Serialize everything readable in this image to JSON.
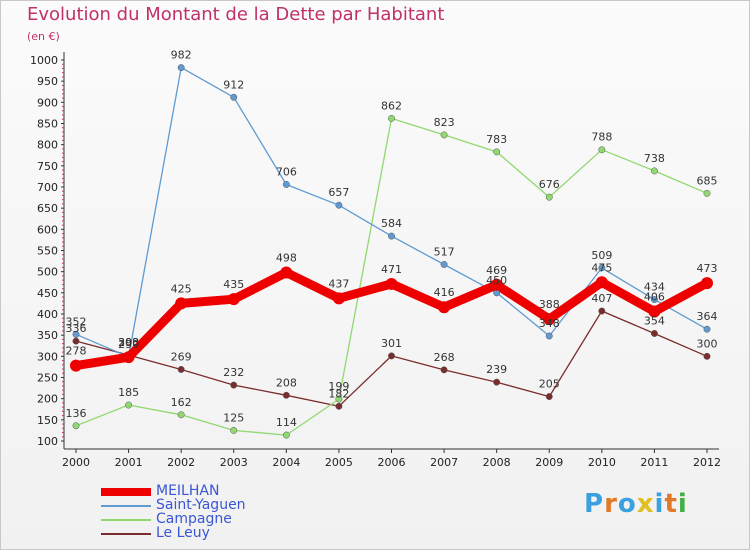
{
  "header": {
    "title": "Evolution du Montant de la Dette par Habitant",
    "unit": "(en €)"
  },
  "logo": {
    "text": "Proxiti",
    "letter_colors": [
      "#3aa0e0",
      "#e07a28",
      "#3aa0e0",
      "#e0c020",
      "#3aa0e0",
      "#e07a28",
      "#40b040"
    ]
  },
  "chart_data": {
    "type": "line",
    "title": "Evolution du Montant de la Dette par Habitant",
    "ylabel": "(en €)",
    "xlabel": "",
    "x": [
      "2000",
      "2001",
      "2002",
      "2003",
      "2004",
      "2005",
      "2006",
      "2007",
      "2008",
      "2009",
      "2010",
      "2011",
      "2012"
    ],
    "ylim": [
      100,
      1000
    ],
    "yticks": [
      100,
      150,
      200,
      250,
      300,
      350,
      400,
      450,
      500,
      550,
      600,
      650,
      700,
      750,
      800,
      850,
      900,
      950,
      1000
    ],
    "grid": false,
    "legend_position": "bottom-left",
    "series": [
      {
        "name": "MEILHAN",
        "color": "#ee0000",
        "values": [
          278,
          298,
          425,
          435,
          498,
          437,
          471,
          416,
          469,
          388,
          475,
          406,
          473
        ]
      },
      {
        "name": "Saint-Yaguen",
        "color": "#5f9bd0",
        "values": [
          352,
          299,
          982,
          912,
          706,
          657,
          584,
          517,
          450,
          348,
          509,
          434,
          364
        ]
      },
      {
        "name": "Campagne",
        "color": "#90d870",
        "values": [
          136,
          185,
          162,
          125,
          114,
          199,
          862,
          823,
          783,
          676,
          788,
          738,
          685
        ]
      },
      {
        "name": "Le Leuy",
        "color": "#7a2d2d",
        "values": [
          336,
          303,
          269,
          232,
          208,
          182,
          301,
          268,
          239,
          205,
          407,
          354,
          300
        ]
      }
    ]
  }
}
